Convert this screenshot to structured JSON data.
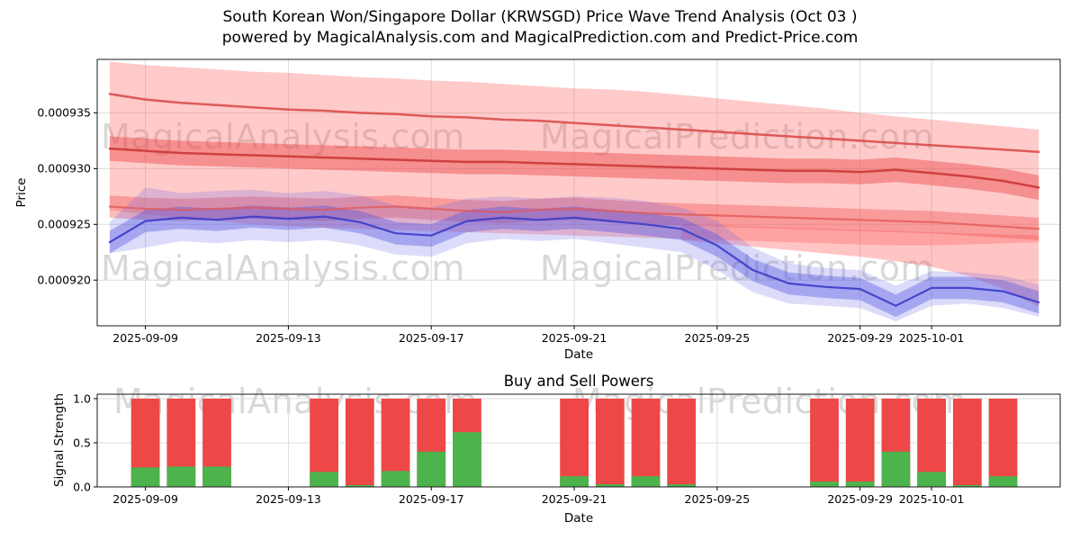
{
  "title": {
    "line1": "South Korean Won/Singapore Dollar (KRWSGD) Price Wave Trend Analysis (Oct 03 )",
    "line2": "powered by MagicalAnalysis.com and MagicalPrediction.com and Predict-Price.com"
  },
  "watermarks": {
    "analysis": "MagicalAnalysis.com",
    "prediction": "MagicalPrediction.com"
  },
  "chart_data": [
    {
      "type": "area",
      "name": "price-wave-trend",
      "title": "",
      "xlabel": "Date",
      "ylabel": "Price",
      "x_base_date": "2025-09-08",
      "xlim_days": [
        -0.35,
        26.6
      ],
      "ylim": [
        0.0009159,
        0.0009398
      ],
      "grid": true,
      "x_ticks": [
        "2025-09-09",
        "2025-09-13",
        "2025-09-17",
        "2025-09-21",
        "2025-09-25",
        "2025-09-29",
        "2025-10-01"
      ],
      "y_ticks": [
        {
          "label": "0.000920",
          "value": 0.00092
        },
        {
          "label": "0.000925",
          "value": 0.000925
        },
        {
          "label": "0.000930",
          "value": 0.00093
        },
        {
          "label": "0.000935",
          "value": 0.000935
        }
      ],
      "series": [
        {
          "name": "upper-forecast-envelope",
          "kind": "band",
          "color": "rgba(255,90,90,0.32)",
          "upper": [
            0.0009396,
            0.0009393,
            0.0009391,
            0.0009389,
            0.0009387,
            0.0009386,
            0.0009384,
            0.0009382,
            0.0009381,
            0.0009379,
            0.0009378,
            0.0009376,
            0.0009374,
            0.0009372,
            0.0009371,
            0.0009369,
            0.0009366,
            0.0009363,
            0.000936,
            0.0009357,
            0.0009354,
            0.000935,
            0.0009347,
            0.0009344,
            0.0009341,
            0.0009338,
            0.0009335
          ],
          "lower": [
            0.0009263,
            0.0009259,
            0.0009256,
            0.0009253,
            0.000925,
            0.0009248,
            0.0009247,
            0.0009246,
            0.0009245,
            0.0009244,
            0.0009243,
            0.0009242,
            0.0009241,
            0.000924,
            0.0009239,
            0.0009238,
            0.0009237,
            0.0009236,
            0.0009235,
            0.0009234,
            0.0009233,
            0.0009232,
            0.0009231,
            0.0009231,
            0.0009232,
            0.0009233,
            0.0009234
          ]
        },
        {
          "name": "lower-forecast-wedge",
          "kind": "band",
          "color": "rgba(255,90,90,0.35)",
          "days": [
            16,
            17,
            18,
            19,
            20,
            21,
            22,
            23,
            24,
            25,
            26
          ],
          "upper": [
            0.000925,
            0.0009249,
            0.0009248,
            0.0009247,
            0.0009246,
            0.0009245,
            0.0009244,
            0.0009243,
            0.0009242,
            0.0009241,
            0.000924
          ],
          "lower": [
            0.0009236,
            0.0009233,
            0.000923,
            0.0009227,
            0.0009224,
            0.0009221,
            0.0009217,
            0.0009212,
            0.0009204,
            0.0009192,
            0.0009176
          ]
        },
        {
          "name": "lower-trend-band",
          "kind": "band",
          "color": "rgba(240,80,80,0.38)",
          "upper": [
            0.0009276,
            0.0009274,
            0.0009273,
            0.0009274,
            0.0009275,
            0.0009274,
            0.0009273,
            0.0009275,
            0.0009276,
            0.0009274,
            0.0009272,
            0.0009271,
            0.0009273,
            0.0009274,
            0.0009272,
            0.000927,
            0.0009269,
            0.0009268,
            0.0009267,
            0.0009266,
            0.0009265,
            0.0009264,
            0.0009263,
            0.0009262,
            0.000926,
            0.0009258,
            0.0009256
          ],
          "lower": [
            0.0009256,
            0.0009254,
            0.0009253,
            0.0009254,
            0.0009255,
            0.0009254,
            0.0009253,
            0.0009255,
            0.0009256,
            0.0009254,
            0.0009252,
            0.0009251,
            0.0009253,
            0.0009254,
            0.0009252,
            0.000925,
            0.0009249,
            0.0009248,
            0.0009247,
            0.0009246,
            0.0009245,
            0.0009244,
            0.0009243,
            0.0009242,
            0.000924,
            0.0009238,
            0.0009236
          ]
        },
        {
          "name": "upper-trend-band",
          "kind": "band",
          "color": "rgba(235,70,70,0.45)",
          "upper": [
            0.0009329,
            0.0009327,
            0.0009325,
            0.0009324,
            0.0009323,
            0.0009322,
            0.0009321,
            0.000932,
            0.0009319,
            0.0009318,
            0.0009317,
            0.0009317,
            0.0009316,
            0.0009315,
            0.0009314,
            0.0009313,
            0.0009312,
            0.0009311,
            0.000931,
            0.0009309,
            0.0009309,
            0.0009308,
            0.000931,
            0.0009307,
            0.0009304,
            0.00093,
            0.0009294
          ],
          "lower": [
            0.0009307,
            0.0009305,
            0.0009303,
            0.0009302,
            0.0009301,
            0.00093,
            0.0009299,
            0.0009298,
            0.0009297,
            0.0009296,
            0.0009295,
            0.0009295,
            0.0009294,
            0.0009293,
            0.0009292,
            0.0009291,
            0.000929,
            0.0009289,
            0.0009288,
            0.0009287,
            0.0009287,
            0.0009286,
            0.0009288,
            0.0009285,
            0.0009282,
            0.0009278,
            0.0009272
          ]
        },
        {
          "name": "price-outer-band",
          "kind": "band",
          "color": "rgba(95,95,230,0.22)",
          "upper": [
            0.0009252,
            0.0009283,
            0.0009278,
            0.000928,
            0.0009281,
            0.0009278,
            0.000928,
            0.0009276,
            0.0009267,
            0.0009265,
            0.0009273,
            0.0009275,
            0.0009273,
            0.0009275,
            0.0009274,
            0.0009271,
            0.0009265,
            0.0009253,
            0.0009229,
            0.0009215,
            0.0009211,
            0.0009209,
            0.0009195,
            0.0009208,
            0.0009207,
            0.0009204,
            0.0009196
          ],
          "lower": [
            0.0009224,
            0.0009229,
            0.0009235,
            0.0009233,
            0.0009236,
            0.0009234,
            0.0009236,
            0.0009231,
            0.0009223,
            0.0009221,
            0.0009233,
            0.0009237,
            0.0009235,
            0.0009237,
            0.0009233,
            0.0009229,
            0.0009225,
            0.0009209,
            0.0009189,
            0.0009179,
            0.0009177,
            0.0009175,
            0.0009163,
            0.0009177,
            0.0009179,
            0.0009175,
            0.0009167
          ]
        },
        {
          "name": "price-inner-band",
          "kind": "band",
          "color": "rgba(85,85,225,0.40)",
          "upper": [
            0.0009244,
            0.0009263,
            0.0009266,
            0.0009264,
            0.0009267,
            0.0009265,
            0.0009267,
            0.0009262,
            0.0009252,
            0.000925,
            0.0009263,
            0.0009266,
            0.0009264,
            0.0009266,
            0.0009263,
            0.000926,
            0.0009256,
            0.0009241,
            0.0009219,
            0.0009207,
            0.0009204,
            0.0009202,
            0.0009187,
            0.0009203,
            0.0009203,
            0.00092,
            0.000919
          ],
          "lower": [
            0.0009224,
            0.0009243,
            0.0009246,
            0.0009244,
            0.0009247,
            0.0009245,
            0.0009247,
            0.0009242,
            0.0009232,
            0.000923,
            0.0009243,
            0.0009246,
            0.0009244,
            0.0009246,
            0.0009243,
            0.000924,
            0.0009236,
            0.0009221,
            0.0009199,
            0.0009187,
            0.0009184,
            0.0009182,
            0.0009167,
            0.0009183,
            0.0009183,
            0.000918,
            0.000917
          ]
        },
        {
          "name": "upper-resistance-line",
          "kind": "line",
          "color": "rgba(215,70,70,0.85)",
          "width": 2.5,
          "values": [
            0.0009367,
            0.0009362,
            0.0009359,
            0.0009357,
            0.0009355,
            0.0009353,
            0.0009352,
            0.000935,
            0.0009349,
            0.0009347,
            0.0009346,
            0.0009344,
            0.0009343,
            0.0009341,
            0.0009339,
            0.0009337,
            0.0009335,
            0.0009333,
            0.0009331,
            0.0009329,
            0.0009327,
            0.0009325,
            0.0009323,
            0.0009321,
            0.0009319,
            0.0009317,
            0.0009315
          ]
        },
        {
          "name": "upper-trend-line",
          "kind": "line",
          "color": "rgba(205,60,60,0.95)",
          "width": 2.5,
          "values": [
            0.0009318,
            0.0009316,
            0.0009314,
            0.0009313,
            0.0009312,
            0.0009311,
            0.000931,
            0.0009309,
            0.0009308,
            0.0009307,
            0.0009306,
            0.0009306,
            0.0009305,
            0.0009304,
            0.0009303,
            0.0009302,
            0.0009301,
            0.00093,
            0.0009299,
            0.0009298,
            0.0009298,
            0.0009297,
            0.0009299,
            0.0009296,
            0.0009293,
            0.0009289,
            0.0009283
          ]
        },
        {
          "name": "lower-trend-line",
          "kind": "line",
          "color": "rgba(225,85,85,0.75)",
          "width": 2.2,
          "values": [
            0.0009266,
            0.0009264,
            0.0009263,
            0.0009264,
            0.0009265,
            0.0009264,
            0.0009263,
            0.0009265,
            0.0009266,
            0.0009264,
            0.0009262,
            0.0009261,
            0.0009263,
            0.0009264,
            0.0009262,
            0.000926,
            0.0009259,
            0.0009258,
            0.0009257,
            0.0009256,
            0.0009255,
            0.0009254,
            0.0009253,
            0.0009252,
            0.000925,
            0.0009248,
            0.0009246
          ]
        },
        {
          "name": "price-median-line",
          "kind": "line",
          "color": "rgba(60,60,200,0.9)",
          "width": 2.2,
          "values": [
            0.0009234,
            0.0009253,
            0.0009256,
            0.0009254,
            0.0009257,
            0.0009255,
            0.0009257,
            0.0009252,
            0.0009242,
            0.000924,
            0.0009253,
            0.0009256,
            0.0009254,
            0.0009256,
            0.0009253,
            0.000925,
            0.0009246,
            0.0009231,
            0.0009209,
            0.0009197,
            0.0009194,
            0.0009192,
            0.0009177,
            0.0009193,
            0.0009193,
            0.000919,
            0.000918
          ]
        }
      ]
    },
    {
      "type": "bar",
      "name": "buy-sell-powers",
      "title": "Buy and Sell Powers",
      "xlabel": "Date",
      "ylabel": "Signal Strength",
      "x_base_date": "2025-09-08",
      "xlim_days": [
        -0.35,
        26.6
      ],
      "ylim": [
        0,
        1.05
      ],
      "grid": true,
      "bar_width_days": 0.8,
      "x_ticks": [
        "2025-09-09",
        "2025-09-13",
        "2025-09-17",
        "2025-09-21",
        "2025-09-25",
        "2025-09-29",
        "2025-10-01"
      ],
      "y_ticks": [
        {
          "label": "0.0",
          "value": 0.0
        },
        {
          "label": "0.5",
          "value": 0.5
        },
        {
          "label": "1.0",
          "value": 1.0
        }
      ],
      "dates": [
        "2025-09-09",
        "2025-09-10",
        "2025-09-11",
        "2025-09-14",
        "2025-09-15",
        "2025-09-16",
        "2025-09-17",
        "2025-09-18",
        "2025-09-21",
        "2025-09-22",
        "2025-09-23",
        "2025-09-24",
        "2025-09-28",
        "2025-09-29",
        "2025-09-30",
        "2025-10-01",
        "2025-10-02",
        "2025-10-03"
      ],
      "series": [
        {
          "name": "Sell Power",
          "color": "#ee4747",
          "values": [
            1,
            1,
            1,
            1,
            1,
            1,
            1,
            1,
            1,
            1,
            1,
            1,
            1,
            1,
            1,
            1,
            1,
            1
          ]
        },
        {
          "name": "Buy Power",
          "color": "#4db34d",
          "values": [
            0.22,
            0.23,
            0.23,
            0.17,
            0.02,
            0.18,
            0.4,
            0.62,
            0.12,
            0.03,
            0.12,
            0.03,
            0.06,
            0.06,
            0.4,
            0.17,
            0.02,
            0.12
          ]
        }
      ]
    }
  ]
}
